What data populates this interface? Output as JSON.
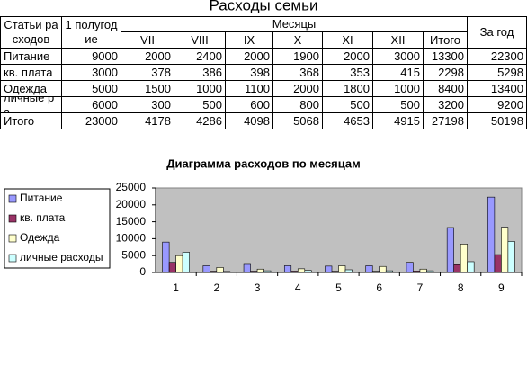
{
  "table": {
    "title": "Расходы семьи",
    "header": [
      "Статьи расходов",
      "1 полугодие",
      "Месяцы",
      "За год"
    ],
    "subheader": [
      "VII",
      "VIII",
      "IX",
      "X",
      "XI",
      "XII",
      "Итого"
    ],
    "rows": [
      [
        "Питание",
        9000,
        2000,
        2400,
        2000,
        1900,
        2000,
        3000,
        13300,
        22300
      ],
      [
        "кв. плата",
        3000,
        378,
        386,
        398,
        368,
        353,
        415,
        2298,
        5298
      ],
      [
        "Одежда",
        5000,
        1500,
        1000,
        1100,
        2000,
        1800,
        1000,
        8400,
        13400
      ],
      [
        "личные ра",
        6000,
        300,
        500,
        600,
        800,
        500,
        500,
        3200,
        9200
      ],
      [
        "Итого",
        23000,
        4178,
        4286,
        4098,
        5068,
        4653,
        4915,
        27198,
        50198
      ]
    ]
  },
  "chart_data": {
    "type": "bar",
    "title": "Диаграмма расходов по месяцам",
    "categories": [
      "1",
      "2",
      "3",
      "4",
      "5",
      "6",
      "7",
      "8",
      "9"
    ],
    "series": [
      {
        "name": "Питание",
        "color": "#9999ff",
        "values": [
          9000,
          2000,
          2400,
          2000,
          1900,
          2000,
          3000,
          13300,
          22300
        ]
      },
      {
        "name": "кв. плата",
        "color": "#993366",
        "values": [
          3000,
          378,
          386,
          398,
          368,
          353,
          415,
          2298,
          5298
        ]
      },
      {
        "name": "Одежда",
        "color": "#ffffcc",
        "values": [
          5000,
          1500,
          1000,
          1100,
          2000,
          1800,
          1000,
          8400,
          13400
        ]
      },
      {
        "name": "личные расходы",
        "color": "#ccffff",
        "values": [
          6000,
          300,
          500,
          600,
          800,
          500,
          500,
          3200,
          9200
        ]
      }
    ],
    "ylim": [
      0,
      25000
    ],
    "yticks": [
      0,
      5000,
      10000,
      15000,
      20000,
      25000
    ],
    "grid": false,
    "legend": "left"
  }
}
